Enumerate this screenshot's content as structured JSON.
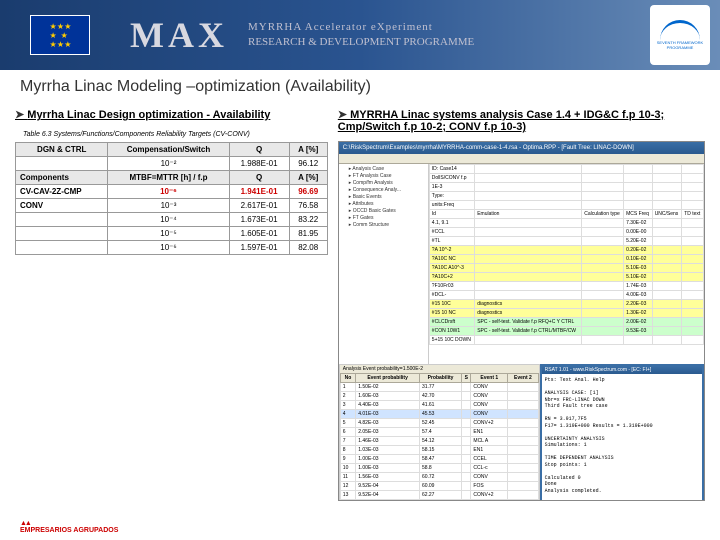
{
  "header": {
    "max": "MAX",
    "line1": "MYRRHA Accelerator eXperiment",
    "line2": "RESEARCH & DEVELOPMENT PROGRAMME",
    "fp7": "SEVENTH FRAMEWORK PROGRAMME"
  },
  "slide_title": "Myrrha Linac Modeling –optimization (Availability)",
  "left": {
    "heading": "Myrrha Linac Design optimization - Availability",
    "table_title": "Table 6.3 Systems/Functions/Components Reliability Targets (CV-CONV)",
    "table": {
      "header_row1": [
        "DGN & CTRL",
        "Compensation/Switch",
        "Q",
        "A [%]"
      ],
      "header_row2": [
        "",
        "10⁻²",
        "1.988E-01",
        "96.12"
      ],
      "col_heads": [
        "Components",
        "MTBF=MTTR [h] / f.p",
        "Q",
        "A [%]"
      ],
      "rows": [
        {
          "c": "CV-CAV-2Z-CMP",
          "m": "10⁻⁶",
          "m_red": true,
          "q": "1.941E-01",
          "q_red": true,
          "a": "96.69",
          "a_red": true
        },
        {
          "c": "CONV",
          "m": "10⁻³",
          "q": "2.617E-01",
          "a": "76.58"
        },
        {
          "c": "",
          "m": "10⁻⁴",
          "q": "1.673E-01",
          "a": "83.22"
        },
        {
          "c": "",
          "m": "10⁻⁵",
          "q": "1.605E-01",
          "a": "81.95"
        },
        {
          "c": "",
          "m": "10⁻⁶",
          "q": "1.597E-01",
          "a": "82.08"
        }
      ]
    }
  },
  "right": {
    "heading": "MYRRHA Linac systems analysis Case 1.4 + IDG&C f.p 10-3; Cmp/Switch f.p 10-2; CONV f.p 10-3)",
    "titlebar": "C:\\RiskSpectrum\\Examples\\myrrha\\MYRRHA-comm-case-1-4.rsa - Optima.RPP - [Fault Tree: LINAC-DOWN]",
    "tree_items": [
      "Analysis Case",
      "FT Analysis Case",
      "Comp/fm Analysis",
      "Consequence Analy...",
      "Basic Events",
      "Attributes",
      "OCCD Basic Gates",
      "FT Gates",
      "Comm Structure"
    ],
    "grid": {
      "cols": [
        "ID",
        "Text",
        "Calculation type",
        "MCS Freq",
        "UNC/Sens",
        "TD text"
      ],
      "rows": [
        {
          "id": "ID: Case14",
          "txt": "",
          "hl": ""
        },
        {
          "id": "DollS/CONV f.p",
          "txt": "",
          "hl": ""
        },
        {
          "id": "1E-3",
          "txt": "",
          "hl": ""
        },
        {
          "id": "Type:",
          "txt": "",
          "hl": ""
        },
        {
          "id": "units:Freq",
          "txt": "",
          "hl": ""
        },
        {
          "id": "Id",
          "txt": "Emulation",
          "c1": "Calculation type",
          "c2": "MCS Freq",
          "c3": "UNC/Sens",
          "c4": "TD text",
          "hl": ""
        },
        {
          "id": "4.1, 9.1",
          "txt": "",
          "c1": "",
          "c2": "7.30E-02",
          "hl": ""
        },
        {
          "id": "#CCL",
          "txt": "",
          "c1": "",
          "c2": "0.00E-00",
          "hl": ""
        },
        {
          "id": "#TL",
          "txt": "",
          "c1": "",
          "c2": "5.20E-02",
          "hl": ""
        },
        {
          "id": "?A 10^-2",
          "txt": "",
          "c1": "",
          "c2": "0.20E-02",
          "hl": "hl-yellow"
        },
        {
          "id": "?A10C NC",
          "txt": "",
          "c1": "",
          "c2": "0.10E-02",
          "hl": "hl-yellow"
        },
        {
          "id": "?A10C A10^-3",
          "txt": "",
          "c1": "",
          "c2": "5.10E-03",
          "hl": "hl-yellow"
        },
        {
          "id": "?A10C+2",
          "txt": "",
          "c1": "",
          "c2": "5.10E-02",
          "hl": "hl-yellow"
        },
        {
          "id": "?F10Fr03",
          "txt": "",
          "c1": "",
          "c2": "1.74E-03",
          "hl": ""
        },
        {
          "id": "#DCL-",
          "txt": "",
          "c1": "",
          "c2": "4.00E-03",
          "hl": ""
        },
        {
          "id": "#15 10C",
          "txt": "diagnostics",
          "c1": "",
          "c2": "2.20E-03",
          "hl": "hl-yellow"
        },
        {
          "id": "#15 10 NC",
          "txt": "diagnostics",
          "c1": "",
          "c2": "1.30E-02",
          "hl": "hl-yellow"
        },
        {
          "id": "#CLCDrsft",
          "txt": "SPC - self-test. Validate f.p RFQ+C Y CTRL",
          "c1": "",
          "c2": "2.00E-02",
          "hl": "hl-green"
        },
        {
          "id": "#CON 10W1",
          "txt": "SPC - self-test. Validate f.p CTRL/MTBF/CW",
          "c1": "",
          "c2": "9.53E-03",
          "hl": "hl-green"
        },
        {
          "id": "5+15 10C DOWN",
          "txt": "",
          "c1": "",
          "c2": "",
          "hl": ""
        }
      ]
    },
    "lower_table": {
      "title": "Analysis    Event probability=1.500E-2",
      "cols": [
        "No",
        "Event probability",
        "Probability",
        "S",
        "Event 1",
        "Event 2"
      ],
      "rows": [
        [
          "1",
          "1.50E-02",
          "31.77",
          "",
          "CONV",
          ""
        ],
        [
          "2",
          "1.60E-03",
          "42.70",
          "",
          "CONV",
          ""
        ],
        [
          "3",
          "4.40E-03",
          "41.61",
          "",
          "CONV",
          ""
        ],
        [
          "4",
          "4.01E-03",
          "45.53",
          "",
          "CONV",
          ""
        ],
        [
          "5",
          "4.82E-03",
          "52.45",
          "",
          "CONV+2",
          ""
        ],
        [
          "6",
          "2.05E-03",
          "57.4",
          "",
          "EN1",
          ""
        ],
        [
          "7",
          "1.46E-03",
          "54.12",
          "",
          "MCL A",
          ""
        ],
        [
          "8",
          "1.03E-03",
          "58.15",
          "",
          "EN1",
          ""
        ],
        [
          "9",
          "1.00E-03",
          "58.47",
          "",
          "CCEL",
          ""
        ],
        [
          "10",
          "1.00E-03",
          "58.8",
          "",
          "CCL-c",
          ""
        ],
        [
          "11",
          "1.56E-03",
          "60.72",
          "",
          "CONV",
          ""
        ],
        [
          "12",
          "9.52E-04",
          "60.09",
          "",
          "FOS",
          ""
        ],
        [
          "13",
          "9.52E-04",
          "62.27",
          "",
          "CONV+2",
          ""
        ],
        [
          "14",
          "9.52E-04",
          "63.27",
          "",
          "MCL A",
          ""
        ]
      ]
    },
    "popup": {
      "title": "RSAT 1.01 - www.RiskSpectrum.com - [EC: FI+]",
      "lines": [
        "Pts: Text   Anal.  Help",
        "",
        "ANALYSIS CASE: [1]",
        "Nbr=x  FRC-LINAC DOWN",
        "Third   Fault tree case",
        "",
        "RN = 3.917,7F5",
        "F17= 1.319E+000  Results = 1.319E+000",
        "",
        "UNCERTAINTY ANALYSIS",
        "Simulations: 1",
        "",
        "TIME DEPENDENT ANALYSIS",
        "Stop points: 1",
        "",
        "Calculated     0",
        "Done",
        "Analysis completed."
      ]
    }
  },
  "footer_logo": "EMPRESARIOS AGRUPADOS",
  "colors": {
    "banner_start": "#1a3c6e",
    "banner_end": "#6a8db8",
    "eu_blue": "#003399",
    "eu_gold": "#ffcc00",
    "red": "#cc0000",
    "hl_yellow": "#ffff99",
    "hl_green": "#ccffcc"
  }
}
